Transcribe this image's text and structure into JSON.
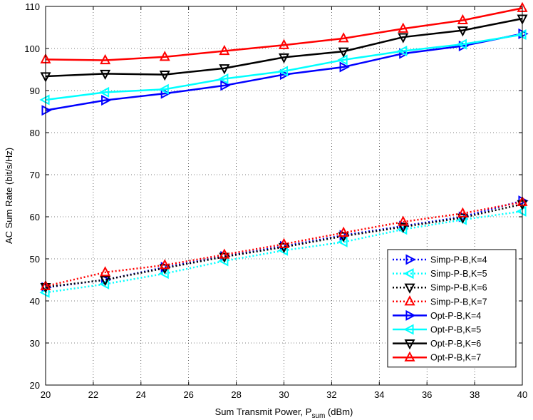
{
  "chart_data": {
    "type": "line",
    "title": "",
    "xlabel": "Sum Transmit Power, P",
    "xlabel_subscript": "sum",
    "xlabel_suffix": " (dBm)",
    "ylabel": "AC Sum Rate (bit/s/Hz)",
    "xlim": [
      20,
      40
    ],
    "ylim": [
      20,
      110
    ],
    "xticks": [
      20,
      22,
      24,
      26,
      28,
      30,
      32,
      34,
      36,
      38,
      40
    ],
    "yticks": [
      20,
      30,
      40,
      50,
      60,
      70,
      80,
      90,
      100,
      110
    ],
    "grid": true,
    "legend_position": "bottom-right",
    "x": [
      20,
      22.5,
      25,
      27.5,
      30,
      32.5,
      35,
      37.5,
      40
    ],
    "series": [
      {
        "name": "Simp-P-B,K=4",
        "color": "#0000ff",
        "style": "dotted",
        "marker": "triangle-right",
        "values": [
          43.2,
          45.0,
          48.0,
          50.6,
          53.0,
          55.6,
          57.8,
          60.0,
          63.8
        ]
      },
      {
        "name": "Simp-P-B,K=5",
        "color": "#00ffff",
        "style": "dotted",
        "marker": "triangle-left",
        "values": [
          42.0,
          44.0,
          46.5,
          49.5,
          52.0,
          54.0,
          57.0,
          59.3,
          61.3
        ]
      },
      {
        "name": "Simp-P-B,K=6",
        "color": "#000000",
        "style": "dotted",
        "marker": "triangle-down",
        "values": [
          43.3,
          45.0,
          47.8,
          50.5,
          52.8,
          55.4,
          57.6,
          59.8,
          63.0
        ]
      },
      {
        "name": "Simp-P-B,K=7",
        "color": "#ff0000",
        "style": "dotted",
        "marker": "triangle-up",
        "values": [
          43.5,
          46.8,
          48.5,
          51.0,
          53.5,
          56.2,
          58.8,
          60.8,
          63.5
        ]
      },
      {
        "name": "Opt-P-B,K=4",
        "color": "#0000ff",
        "style": "solid",
        "marker": "triangle-right",
        "values": [
          85.3,
          87.7,
          89.3,
          91.2,
          93.8,
          95.6,
          98.8,
          100.6,
          103.5
        ]
      },
      {
        "name": "Opt-P-B,K=5",
        "color": "#00ffff",
        "style": "solid",
        "marker": "triangle-left",
        "values": [
          87.8,
          89.6,
          90.3,
          92.8,
          94.6,
          97.3,
          99.4,
          101.0,
          103.3
        ]
      },
      {
        "name": "Opt-P-B,K=6",
        "color": "#000000",
        "style": "solid",
        "marker": "triangle-down",
        "values": [
          93.4,
          94.0,
          93.8,
          95.3,
          97.9,
          99.3,
          102.7,
          104.3,
          107.1
        ]
      },
      {
        "name": "Opt-P-B,K=7",
        "color": "#ff0000",
        "style": "solid",
        "marker": "triangle-up",
        "values": [
          97.4,
          97.2,
          98.0,
          99.4,
          100.8,
          102.4,
          104.7,
          106.7,
          109.6
        ]
      }
    ]
  }
}
